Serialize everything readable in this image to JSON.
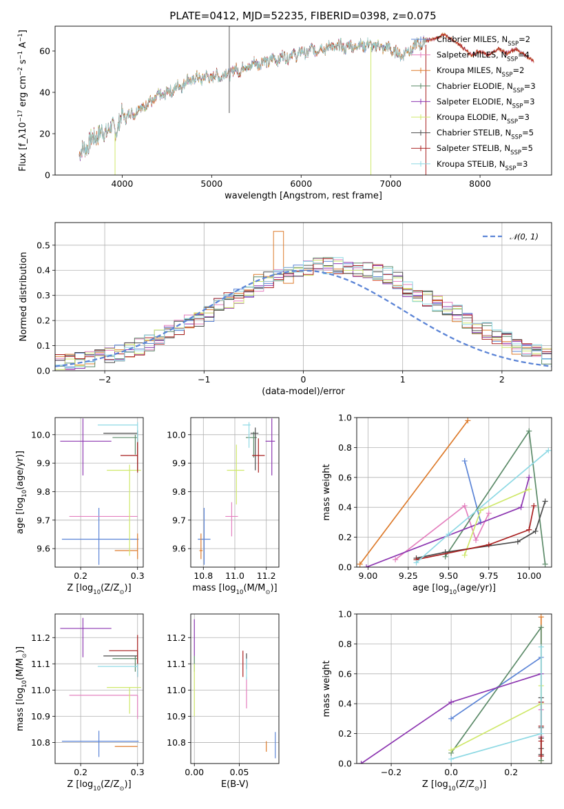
{
  "colors": {
    "chabrier_miles": "#5b84d6",
    "salpeter_miles": "#e47fbe",
    "kroupa_miles": "#dd7a2a",
    "chabrier_elodie": "#5b8a68",
    "salpeter_elodie": "#8c35b0",
    "kroupa_elodie": "#cfe86a",
    "chabrier_stelib": "#4a4a4a",
    "salpeter_stelib": "#a81e1e",
    "kroupa_stelib": "#8ed9e4",
    "gaussian": "#5b84d6"
  },
  "legend_labels": [
    "Chabrier MILES, N_SSP=2",
    "Salpeter MILES, N_SSP=4",
    "Kroupa MILES, N_SSP=2",
    "Chabrier ELODIE, N_SSP=3",
    "Salpeter ELODIE, N_SSP=3",
    "Kroupa ELODIE, N_SSP=3",
    "Chabrier STELIB, N_SSP=5",
    "Salpeter STELIB, N_SSP=5",
    "Kroupa STELIB, N_SSP=3"
  ],
  "chart_data": [
    {
      "id": "spectrum",
      "type": "line",
      "title": "PLATE=0412, MJD=52235, FIBERID=0398, z=0.075",
      "xlabel": "wavelength [Angstrom, rest frame]",
      "ylabel": "Flux [f_λ10^-17 erg cm^-2 s^-1 A^-1]",
      "xlim": [
        3250,
        8800
      ],
      "ylim": [
        0,
        72
      ],
      "xticks": [
        4000,
        5000,
        6000,
        7000,
        8000
      ],
      "yticks": [
        0,
        20,
        40,
        60
      ],
      "legend": "upper right",
      "continuum": {
        "x": [
          3520,
          3600,
          3700,
          3800,
          3900,
          3950,
          4000,
          4050,
          4150,
          4300,
          4450,
          4600,
          4750,
          4900,
          5100,
          5300,
          5500,
          5700,
          5900,
          6100,
          6300,
          6500,
          6700,
          6900,
          7000,
          7100,
          7200,
          7300,
          7400
        ],
        "y": [
          10,
          14,
          19,
          21,
          23,
          22,
          30,
          28,
          31,
          35,
          39,
          42,
          46,
          47,
          48,
          51,
          54,
          56,
          58,
          60,
          62,
          62,
          63,
          62,
          61,
          58,
          60,
          63,
          65
        ]
      },
      "model_extension": {
        "x": [
          7400,
          7500,
          7600,
          7700,
          7800,
          7900,
          8000,
          8100,
          8200,
          8300,
          8400,
          8500,
          8600
        ],
        "y": [
          65,
          66,
          68,
          65,
          62,
          58,
          60,
          58,
          61,
          59,
          61,
          58,
          55
        ]
      },
      "spikes": [
        {
          "x": 5197,
          "y_from": 30,
          "y_to": 72
        },
        {
          "x": 6780,
          "y_from": 0,
          "y_to": 62
        },
        {
          "x": 3920,
          "y_from": 0,
          "y_to": 20
        },
        {
          "x": 7395,
          "y_from": 0,
          "y_to": 63
        }
      ]
    },
    {
      "id": "residual_histogram",
      "type": "histogram",
      "xlabel": "(data-model)/error",
      "ylabel": "Normed distribution",
      "xlim": [
        -2.5,
        2.5
      ],
      "ylim": [
        0,
        0.59
      ],
      "xticks": [
        -2,
        -1,
        0,
        1,
        2
      ],
      "yticks": [
        0.0,
        0.1,
        0.2,
        0.3,
        0.4,
        0.5
      ],
      "legend": "upper right",
      "gaussian_label": "N(0,1)",
      "bin_edges_start": -2.5,
      "bin_width": 0.1,
      "base_bin_values": [
        0.03,
        0.035,
        0.04,
        0.045,
        0.055,
        0.06,
        0.07,
        0.08,
        0.095,
        0.11,
        0.13,
        0.15,
        0.17,
        0.19,
        0.21,
        0.23,
        0.26,
        0.28,
        0.3,
        0.32,
        0.35,
        0.36,
        0.37,
        0.38,
        0.4,
        0.41,
        0.42,
        0.42,
        0.42,
        0.41,
        0.4,
        0.4,
        0.39,
        0.38,
        0.36,
        0.33,
        0.31,
        0.29,
        0.27,
        0.25,
        0.23,
        0.2,
        0.18,
        0.16,
        0.14,
        0.12,
        0.1,
        0.09,
        0.075,
        0.06
      ]
    },
    {
      "id": "age_vs_Z",
      "type": "scatter",
      "xlabel": "Z [log10(Z/Z⊙)]",
      "ylabel": "age [log10(age/yr)]",
      "xlim": [
        0.155,
        0.31
      ],
      "ylim": [
        9.535,
        10.06
      ],
      "xticks": [
        0.2,
        0.3
      ],
      "yticks": [
        9.6,
        9.7,
        9.8,
        9.9,
        10.0
      ],
      "points": [
        {
          "key": "chabrier_miles",
          "x": 0.232,
          "y": 9.633,
          "xerr": [
            0.065,
            0.07
          ],
          "yerr": [
            0.09,
            0.11
          ]
        },
        {
          "key": "salpeter_miles",
          "x": 0.3,
          "y": 9.713,
          "xerr": [
            0.12,
            0.0
          ],
          "yerr": [
            0.0,
            0.0
          ]
        },
        {
          "key": "kroupa_miles",
          "x": 0.3,
          "y": 9.593,
          "xerr": [
            0.04,
            0.0
          ],
          "yerr": [
            0.03,
            0.06
          ]
        },
        {
          "key": "chabrier_elodie",
          "x": 0.296,
          "y": 9.99,
          "xerr": [
            0.04,
            0.004
          ],
          "yerr": [
            0.06,
            0.01
          ]
        },
        {
          "key": "salpeter_elodie",
          "x": 0.204,
          "y": 9.977,
          "xerr": [
            0.04,
            0.05
          ],
          "yerr": [
            0.12,
            0.08
          ]
        },
        {
          "key": "kroupa_elodie",
          "x": 0.286,
          "y": 9.875,
          "xerr": [
            0.04,
            0.02
          ],
          "yerr": [
            0.3,
            0.02
          ]
        },
        {
          "key": "chabrier_stelib",
          "x": 0.3,
          "y": 10.005,
          "xerr": [
            0.06,
            0.0
          ],
          "yerr": [
            0.13,
            0.01
          ]
        },
        {
          "key": "salpeter_stelib",
          "x": 0.3,
          "y": 9.927,
          "xerr": [
            0.03,
            0.0
          ],
          "yerr": [
            0.06,
            0.06
          ]
        },
        {
          "key": "kroupa_stelib",
          "x": 0.3,
          "y": 10.034,
          "xerr": [
            0.07,
            0.0
          ],
          "yerr": [
            0.06,
            0.01
          ]
        }
      ]
    },
    {
      "id": "age_vs_mass",
      "type": "scatter",
      "xlabel": "mass [log10(M/M⊙)]",
      "ylabel": "",
      "xlim": [
        10.72,
        11.28
      ],
      "ylim": [
        9.535,
        10.06
      ],
      "xticks": [
        10.8,
        11.0,
        11.2
      ],
      "yticks": [
        9.6,
        9.7,
        9.8,
        9.9,
        10.0
      ],
      "points": [
        {
          "key": "chabrier_miles",
          "x": 10.805,
          "y": 9.633,
          "xerr": [
            0.04,
            0.04
          ],
          "yerr": [
            0.09,
            0.11
          ]
        },
        {
          "key": "salpeter_miles",
          "x": 10.98,
          "y": 9.713,
          "xerr": [
            0.04,
            0.04
          ],
          "yerr": [
            0.07,
            0.05
          ]
        },
        {
          "key": "kroupa_miles",
          "x": 10.785,
          "y": 9.593,
          "xerr": [
            0.01,
            0.01
          ],
          "yerr": [
            0.03,
            0.06
          ]
        },
        {
          "key": "chabrier_elodie",
          "x": 11.12,
          "y": 9.99,
          "xerr": [
            0.05,
            0.02
          ],
          "yerr": [
            0.07,
            0.02
          ]
        },
        {
          "key": "salpeter_elodie",
          "x": 11.235,
          "y": 9.977,
          "xerr": [
            0.04,
            0.02
          ],
          "yerr": [
            0.12,
            0.08
          ]
        },
        {
          "key": "kroupa_elodie",
          "x": 11.01,
          "y": 9.875,
          "xerr": [
            0.06,
            0.05
          ],
          "yerr": [
            0.12,
            0.09
          ]
        },
        {
          "key": "chabrier_stelib",
          "x": 11.13,
          "y": 10.005,
          "xerr": [
            0.03,
            0.02
          ],
          "yerr": [
            0.13,
            0.02
          ]
        },
        {
          "key": "salpeter_stelib",
          "x": 11.15,
          "y": 9.927,
          "xerr": [
            0.04,
            0.04
          ],
          "yerr": [
            0.06,
            0.06
          ]
        },
        {
          "key": "kroupa_stelib",
          "x": 11.09,
          "y": 10.034,
          "xerr": [
            0.04,
            0.01
          ],
          "yerr": [
            0.08,
            0.01
          ]
        }
      ]
    },
    {
      "id": "massweight_vs_age",
      "type": "line",
      "xlabel": "age [log10(age/yr)]",
      "ylabel": "mass weight",
      "xlim": [
        8.93,
        10.14
      ],
      "ylim": [
        0,
        1.0
      ],
      "xticks": [
        9.0,
        9.25,
        9.5,
        9.75,
        10.0
      ],
      "yticks": [
        0.0,
        0.2,
        0.4,
        0.6,
        0.8,
        1.0
      ],
      "series": [
        {
          "key": "chabrier_miles",
          "x": [
            9.6,
            9.7
          ],
          "y": [
            0.71,
            0.3
          ]
        },
        {
          "key": "salpeter_miles",
          "x": [
            9.17,
            9.6,
            9.67,
            9.75
          ],
          "y": [
            0.05,
            0.41,
            0.18,
            0.36
          ]
        },
        {
          "key": "kroupa_miles",
          "x": [
            8.95,
            9.62
          ],
          "y": [
            0.02,
            0.98
          ]
        },
        {
          "key": "chabrier_elodie",
          "x": [
            9.48,
            10.0,
            10.1
          ],
          "y": [
            0.07,
            0.91,
            0.02
          ]
        },
        {
          "key": "salpeter_elodie",
          "x": [
            8.99,
            9.95,
            10.0
          ],
          "y": [
            0.0,
            0.4,
            0.6
          ]
        },
        {
          "key": "kroupa_elodie",
          "x": [
            9.6,
            9.7,
            10.0
          ],
          "y": [
            0.08,
            0.38,
            0.52
          ]
        },
        {
          "key": "chabrier_stelib",
          "x": [
            9.3,
            9.48,
            9.93,
            10.04,
            10.1
          ],
          "y": [
            0.06,
            0.1,
            0.17,
            0.24,
            0.44
          ]
        },
        {
          "key": "salpeter_stelib",
          "x": [
            9.3,
            9.75,
            10.0,
            10.03
          ],
          "y": [
            0.05,
            0.15,
            0.25,
            0.41
          ]
        },
        {
          "key": "kroupa_stelib",
          "x": [
            9.3,
            9.5,
            10.12
          ],
          "y": [
            0.03,
            0.22,
            0.78
          ]
        }
      ]
    },
    {
      "id": "mass_vs_Z",
      "type": "scatter",
      "xlabel": "Z [log10(Z/Z⊙)]",
      "ylabel": "mass [log10(M/M⊙)]",
      "xlim": [
        0.155,
        0.31
      ],
      "ylim": [
        10.72,
        11.29
      ],
      "xticks": [
        0.2,
        0.3
      ],
      "yticks": [
        10.8,
        10.9,
        11.0,
        11.1,
        11.2
      ],
      "points": [
        {
          "key": "chabrier_miles",
          "x": 0.232,
          "y": 10.805,
          "xerr": [
            0.065,
            0.07
          ],
          "yerr": [
            0.06,
            0.04
          ]
        },
        {
          "key": "salpeter_miles",
          "x": 0.3,
          "y": 10.98,
          "xerr": [
            0.12,
            0.0
          ],
          "yerr": [
            0.09,
            0.0
          ]
        },
        {
          "key": "kroupa_miles",
          "x": 0.3,
          "y": 10.785,
          "xerr": [
            0.04,
            0.0
          ],
          "yerr": [
            0.0,
            0.0
          ]
        },
        {
          "key": "chabrier_elodie",
          "x": 0.296,
          "y": 11.12,
          "xerr": [
            0.04,
            0.004
          ],
          "yerr": [
            0.05,
            0.01
          ]
        },
        {
          "key": "salpeter_elodie",
          "x": 0.204,
          "y": 11.235,
          "xerr": [
            0.04,
            0.05
          ],
          "yerr": [
            0.11,
            0.04
          ]
        },
        {
          "key": "kroupa_elodie",
          "x": 0.286,
          "y": 11.01,
          "xerr": [
            0.04,
            0.02
          ],
          "yerr": [
            0.1,
            0.0
          ]
        },
        {
          "key": "chabrier_stelib",
          "x": 0.3,
          "y": 11.13,
          "xerr": [
            0.06,
            0.0
          ],
          "yerr": [
            0.04,
            0.02
          ]
        },
        {
          "key": "salpeter_stelib",
          "x": 0.3,
          "y": 11.15,
          "xerr": [
            0.05,
            0.0
          ],
          "yerr": [
            0.1,
            0.06
          ]
        },
        {
          "key": "kroupa_stelib",
          "x": 0.3,
          "y": 11.09,
          "xerr": [
            0.07,
            0.0
          ],
          "yerr": [
            0.04,
            0.01
          ]
        }
      ]
    },
    {
      "id": "mass_vs_EBV",
      "type": "scatter",
      "xlabel": "E(B-V)",
      "ylabel": "",
      "xlim": [
        -0.004,
        0.094
      ],
      "ylim": [
        10.72,
        11.29
      ],
      "xticks": [
        0.0,
        0.05
      ],
      "yticks": [
        10.8,
        10.9,
        11.0,
        11.1,
        11.2
      ],
      "points": [
        {
          "key": "chabrier_miles",
          "x": 0.09,
          "y": 10.79,
          "xerr": [
            0,
            0
          ],
          "yerr": [
            0.05,
            0.05
          ]
        },
        {
          "key": "salpeter_miles",
          "x": 0.058,
          "y": 10.99,
          "xerr": [
            0,
            0
          ],
          "yerr": [
            0.06,
            0.06
          ]
        },
        {
          "key": "kroupa_miles",
          "x": 0.08,
          "y": 10.785,
          "xerr": [
            0,
            0
          ],
          "yerr": [
            0.02,
            0.02
          ]
        },
        {
          "key": "chabrier_elodie",
          "x": 0.0,
          "y": 11.12,
          "xerr": [
            0,
            0
          ],
          "yerr": [
            0.05,
            0.01
          ]
        },
        {
          "key": "salpeter_elodie",
          "x": 0.0,
          "y": 11.2,
          "xerr": [
            0,
            0
          ],
          "yerr": [
            0.07,
            0.07
          ]
        },
        {
          "key": "kroupa_elodie",
          "x": 0.0,
          "y": 11.0,
          "xerr": [
            0,
            0
          ],
          "yerr": [
            0.1,
            0.1
          ]
        },
        {
          "key": "chabrier_stelib",
          "x": 0.058,
          "y": 11.12,
          "xerr": [
            0,
            0
          ],
          "yerr": [
            0.04,
            0.02
          ]
        },
        {
          "key": "salpeter_stelib",
          "x": 0.054,
          "y": 11.1,
          "xerr": [
            0,
            0
          ],
          "yerr": [
            0.05,
            0.05
          ]
        },
        {
          "key": "kroupa_stelib",
          "x": 0.058,
          "y": 11.08,
          "xerr": [
            0,
            0
          ],
          "yerr": [
            0.04,
            0.04
          ]
        }
      ]
    },
    {
      "id": "massweight_vs_Z",
      "type": "line",
      "xlabel": "Z [log10(Z/Z⊙)]",
      "ylabel": "mass weight",
      "xlim": [
        -0.315,
        0.335
      ],
      "ylim": [
        0,
        1.0
      ],
      "xticks": [
        -0.2,
        0.0,
        0.2
      ],
      "yticks": [
        0.0,
        0.2,
        0.4,
        0.6,
        0.8,
        1.0
      ],
      "series": [
        {
          "key": "chabrier_miles",
          "x": [
            0.0,
            0.3
          ],
          "y": [
            0.3,
            0.71
          ]
        },
        {
          "key": "salpeter_miles",
          "x": [
            0.3,
            0.3,
            0.3,
            0.3
          ],
          "y": [
            0.05,
            0.18,
            0.36,
            0.41
          ]
        },
        {
          "key": "kroupa_miles",
          "x": [
            0.3,
            0.3
          ],
          "y": [
            0.02,
            0.98
          ]
        },
        {
          "key": "chabrier_elodie",
          "x": [
            0.0,
            0.3,
            0.3
          ],
          "y": [
            0.07,
            0.91,
            0.02
          ]
        },
        {
          "key": "salpeter_elodie",
          "x": [
            -0.3,
            0.0,
            0.3
          ],
          "y": [
            0.0,
            0.41,
            0.6
          ]
        },
        {
          "key": "kroupa_elodie",
          "x": [
            0.0,
            0.3,
            0.3
          ],
          "y": [
            0.09,
            0.4,
            0.52
          ]
        },
        {
          "key": "chabrier_stelib",
          "x": [
            0.3,
            0.3,
            0.3,
            0.3,
            0.3
          ],
          "y": [
            0.06,
            0.1,
            0.17,
            0.24,
            0.44
          ]
        },
        {
          "key": "salpeter_stelib",
          "x": [
            0.3,
            0.3,
            0.3,
            0.3
          ],
          "y": [
            0.05,
            0.15,
            0.25,
            0.41
          ]
        },
        {
          "key": "kroupa_stelib",
          "x": [
            0.0,
            0.3,
            0.3
          ],
          "y": [
            0.03,
            0.2,
            0.78
          ]
        }
      ]
    }
  ]
}
